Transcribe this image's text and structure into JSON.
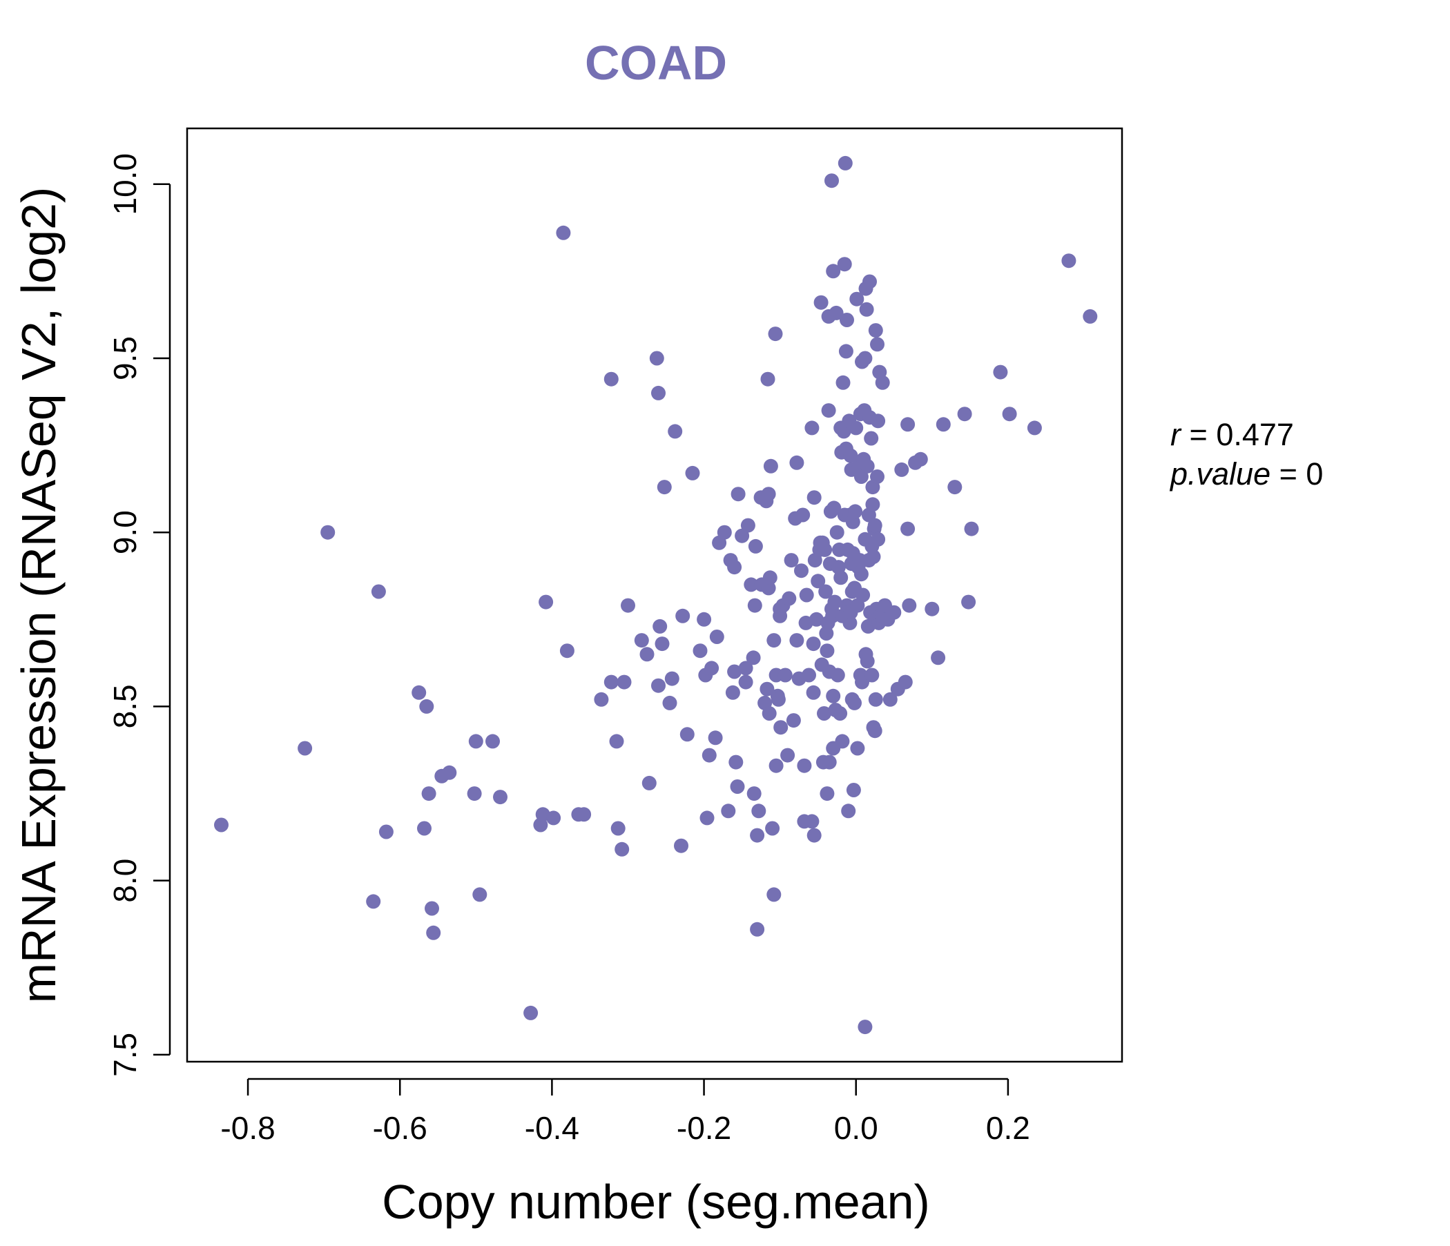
{
  "chart_data": {
    "type": "scatter",
    "title": "COAD",
    "xlabel": "Copy number (seg.mean)",
    "ylabel": "mRNA Expression (RNASeq V2, log2)",
    "xlim": [
      -0.88,
      0.35
    ],
    "ylim": [
      7.48,
      10.16
    ],
    "xticks": [
      -0.8,
      -0.6,
      -0.4,
      -0.2,
      0.0,
      0.2
    ],
    "xtick_labels": [
      "-0.8",
      "-0.6",
      "-0.4",
      "-0.2",
      "0.0",
      "0.2"
    ],
    "yticks": [
      7.5,
      8.0,
      8.5,
      9.0,
      9.5,
      10.0
    ],
    "ytick_labels": [
      "7.5",
      "8.0",
      "8.5",
      "9.0",
      "9.5",
      "10.0"
    ],
    "grid": false,
    "legend": "none",
    "annotations": [
      {
        "label": "r",
        "value": "0.477"
      },
      {
        "label": "p.value",
        "value": "0"
      }
    ],
    "series": [
      {
        "color": "#7570b3",
        "points": [
          [
            -0.835,
            8.16
          ],
          [
            -0.725,
            8.38
          ],
          [
            -0.695,
            9.0
          ],
          [
            -0.635,
            7.94
          ],
          [
            -0.628,
            8.83
          ],
          [
            -0.618,
            8.14
          ],
          [
            -0.575,
            8.54
          ],
          [
            -0.568,
            8.15
          ],
          [
            -0.565,
            8.5
          ],
          [
            -0.562,
            8.25
          ],
          [
            -0.558,
            7.92
          ],
          [
            -0.556,
            7.85
          ],
          [
            -0.545,
            8.3
          ],
          [
            -0.535,
            8.31
          ],
          [
            -0.502,
            8.25
          ],
          [
            -0.5,
            8.4
          ],
          [
            -0.495,
            7.96
          ],
          [
            -0.478,
            8.4
          ],
          [
            -0.468,
            8.24
          ],
          [
            -0.428,
            7.62
          ],
          [
            -0.415,
            8.16
          ],
          [
            -0.412,
            8.19
          ],
          [
            -0.408,
            8.8
          ],
          [
            -0.398,
            8.18
          ],
          [
            -0.385,
            9.86
          ],
          [
            -0.38,
            8.66
          ],
          [
            -0.365,
            8.19
          ],
          [
            -0.358,
            8.19
          ],
          [
            -0.335,
            8.52
          ],
          [
            -0.322,
            8.57
          ],
          [
            -0.322,
            9.44
          ],
          [
            -0.315,
            8.4
          ],
          [
            -0.313,
            8.15
          ],
          [
            -0.308,
            8.09
          ],
          [
            -0.305,
            8.57
          ],
          [
            -0.3,
            8.79
          ],
          [
            -0.282,
            8.69
          ],
          [
            -0.275,
            8.65
          ],
          [
            -0.272,
            8.28
          ],
          [
            -0.262,
            9.5
          ],
          [
            -0.26,
            9.4
          ],
          [
            -0.26,
            8.56
          ],
          [
            -0.258,
            8.73
          ],
          [
            -0.255,
            8.68
          ],
          [
            -0.252,
            9.13
          ],
          [
            -0.245,
            8.51
          ],
          [
            -0.242,
            8.58
          ],
          [
            -0.238,
            9.29
          ],
          [
            -0.23,
            8.1
          ],
          [
            -0.228,
            8.76
          ],
          [
            -0.222,
            8.42
          ],
          [
            -0.215,
            9.17
          ],
          [
            -0.205,
            8.66
          ],
          [
            -0.2,
            8.75
          ],
          [
            -0.198,
            8.59
          ],
          [
            -0.196,
            8.18
          ],
          [
            -0.193,
            8.36
          ],
          [
            -0.19,
            8.61
          ],
          [
            -0.185,
            8.41
          ],
          [
            -0.183,
            8.7
          ],
          [
            -0.18,
            8.97
          ],
          [
            -0.173,
            9.0
          ],
          [
            -0.168,
            8.2
          ],
          [
            -0.165,
            8.92
          ],
          [
            -0.162,
            8.54
          ],
          [
            -0.16,
            8.6
          ],
          [
            -0.16,
            8.9
          ],
          [
            -0.158,
            8.34
          ],
          [
            -0.156,
            8.27
          ],
          [
            -0.155,
            9.11
          ],
          [
            -0.15,
            8.99
          ],
          [
            -0.145,
            8.57
          ],
          [
            -0.145,
            8.61
          ],
          [
            -0.142,
            9.02
          ],
          [
            -0.138,
            8.85
          ],
          [
            -0.135,
            8.64
          ],
          [
            -0.134,
            8.25
          ],
          [
            -0.133,
            8.79
          ],
          [
            -0.132,
            8.96
          ],
          [
            -0.13,
            8.13
          ],
          [
            -0.13,
            7.86
          ],
          [
            -0.128,
            8.2
          ],
          [
            -0.125,
            9.1
          ],
          [
            -0.124,
            8.85
          ],
          [
            -0.12,
            8.51
          ],
          [
            -0.118,
            9.09
          ],
          [
            -0.117,
            8.55
          ],
          [
            -0.116,
            9.44
          ],
          [
            -0.115,
            8.84
          ],
          [
            -0.115,
            9.11
          ],
          [
            -0.114,
            8.48
          ],
          [
            -0.113,
            8.87
          ],
          [
            -0.112,
            9.19
          ],
          [
            -0.11,
            8.15
          ],
          [
            -0.108,
            8.69
          ],
          [
            -0.108,
            7.96
          ],
          [
            -0.106,
            9.57
          ],
          [
            -0.105,
            8.33
          ],
          [
            -0.105,
            8.59
          ],
          [
            -0.103,
            8.53
          ],
          [
            -0.102,
            8.52
          ],
          [
            -0.1,
            8.76
          ],
          [
            -0.1,
            8.78
          ],
          [
            -0.099,
            8.44
          ],
          [
            -0.096,
            8.79
          ],
          [
            -0.093,
            8.59
          ],
          [
            -0.09,
            8.36
          ],
          [
            -0.088,
            8.81
          ],
          [
            -0.085,
            8.92
          ],
          [
            -0.082,
            8.46
          ],
          [
            -0.08,
            9.04
          ],
          [
            -0.078,
            9.2
          ],
          [
            -0.078,
            8.69
          ],
          [
            -0.075,
            8.58
          ],
          [
            -0.072,
            8.89
          ],
          [
            -0.07,
            9.05
          ],
          [
            -0.068,
            8.33
          ],
          [
            -0.068,
            8.17
          ],
          [
            -0.066,
            8.74
          ],
          [
            -0.065,
            8.82
          ],
          [
            -0.062,
            8.59
          ],
          [
            -0.058,
            9.3
          ],
          [
            -0.058,
            8.17
          ],
          [
            -0.056,
            8.54
          ],
          [
            -0.056,
            8.68
          ],
          [
            -0.055,
            9.1
          ],
          [
            -0.055,
            8.13
          ],
          [
            -0.054,
            8.92
          ],
          [
            -0.052,
            8.75
          ],
          [
            -0.05,
            8.86
          ],
          [
            -0.048,
            8.95
          ],
          [
            -0.047,
            8.97
          ],
          [
            -0.046,
            9.66
          ],
          [
            -0.045,
            8.62
          ],
          [
            -0.044,
            8.97
          ],
          [
            -0.043,
            8.34
          ],
          [
            -0.042,
            8.48
          ],
          [
            -0.041,
            8.95
          ],
          [
            -0.04,
            8.83
          ],
          [
            -0.039,
            8.71
          ],
          [
            -0.038,
            8.66
          ],
          [
            -0.038,
            8.25
          ],
          [
            -0.037,
            8.74
          ],
          [
            -0.036,
            9.62
          ],
          [
            -0.036,
            9.35
          ],
          [
            -0.035,
            8.34
          ],
          [
            -0.035,
            8.6
          ],
          [
            -0.034,
            8.91
          ],
          [
            -0.033,
            9.06
          ],
          [
            -0.032,
            10.01
          ],
          [
            -0.032,
            8.78
          ],
          [
            -0.031,
            8.76
          ],
          [
            -0.03,
            9.75
          ],
          [
            -0.03,
            8.38
          ],
          [
            -0.03,
            8.53
          ],
          [
            -0.029,
            9.07
          ],
          [
            -0.028,
            8.8
          ],
          [
            -0.027,
            8.49
          ],
          [
            -0.026,
            9.63
          ],
          [
            -0.025,
            9.0
          ],
          [
            -0.024,
            8.59
          ],
          [
            -0.023,
            8.9
          ],
          [
            -0.022,
            8.95
          ],
          [
            -0.021,
            8.48
          ],
          [
            -0.02,
            9.3
          ],
          [
            -0.02,
            8.87
          ],
          [
            -0.019,
            9.23
          ],
          [
            -0.018,
            8.4
          ],
          [
            -0.018,
            8.76
          ],
          [
            -0.017,
            9.43
          ],
          [
            -0.016,
            9.29
          ],
          [
            -0.015,
            9.05
          ],
          [
            -0.015,
            9.77
          ],
          [
            -0.014,
            10.06
          ],
          [
            -0.013,
            9.24
          ],
          [
            -0.013,
            9.52
          ],
          [
            -0.012,
            9.61
          ],
          [
            -0.012,
            8.79
          ],
          [
            -0.011,
            8.95
          ],
          [
            -0.01,
            8.77
          ],
          [
            -0.01,
            8.2
          ],
          [
            -0.009,
            9.32
          ],
          [
            -0.008,
            8.74
          ],
          [
            -0.008,
            9.05
          ],
          [
            -0.007,
            9.22
          ],
          [
            -0.007,
            8.77
          ],
          [
            -0.006,
            9.18
          ],
          [
            -0.006,
            8.91
          ],
          [
            -0.005,
            8.83
          ],
          [
            -0.005,
            8.52
          ],
          [
            -0.004,
            9.03
          ],
          [
            -0.004,
            8.94
          ],
          [
            -0.003,
            8.26
          ],
          [
            -0.002,
            8.84
          ],
          [
            -0.002,
            8.51
          ],
          [
            -0.001,
            9.06
          ],
          [
            0.0,
            9.3
          ],
          [
            0.001,
            9.67
          ],
          [
            0.002,
            8.38
          ],
          [
            0.002,
            8.79
          ],
          [
            0.003,
            8.9
          ],
          [
            0.004,
            9.19
          ],
          [
            0.005,
            8.92
          ],
          [
            0.006,
            8.59
          ],
          [
            0.006,
            9.34
          ],
          [
            0.007,
            8.88
          ],
          [
            0.007,
            9.16
          ],
          [
            0.008,
            9.49
          ],
          [
            0.008,
            8.57
          ],
          [
            0.009,
            8.82
          ],
          [
            0.01,
            9.21
          ],
          [
            0.011,
            9.35
          ],
          [
            0.012,
            8.98
          ],
          [
            0.012,
            9.5
          ],
          [
            0.012,
            7.58
          ],
          [
            0.013,
            8.65
          ],
          [
            0.013,
            9.7
          ],
          [
            0.014,
            9.64
          ],
          [
            0.015,
            8.63
          ],
          [
            0.015,
            9.19
          ],
          [
            0.016,
            8.73
          ],
          [
            0.017,
            9.05
          ],
          [
            0.017,
            8.92
          ],
          [
            0.018,
            9.72
          ],
          [
            0.018,
            9.33
          ],
          [
            0.019,
            8.77
          ],
          [
            0.02,
            9.27
          ],
          [
            0.021,
            8.96
          ],
          [
            0.021,
            8.59
          ],
          [
            0.022,
            9.08
          ],
          [
            0.022,
            9.13
          ],
          [
            0.023,
            8.44
          ],
          [
            0.023,
            8.93
          ],
          [
            0.024,
            9.01
          ],
          [
            0.024,
            8.76
          ],
          [
            0.025,
            8.43
          ],
          [
            0.025,
            9.02
          ],
          [
            0.026,
            8.52
          ],
          [
            0.026,
            9.58
          ],
          [
            0.027,
            8.78
          ],
          [
            0.028,
            9.16
          ],
          [
            0.028,
            9.54
          ],
          [
            0.029,
            8.98
          ],
          [
            0.029,
            9.32
          ],
          [
            0.03,
            8.74
          ],
          [
            0.031,
            9.46
          ],
          [
            0.032,
            8.76
          ],
          [
            0.035,
            9.43
          ],
          [
            0.035,
            8.76
          ],
          [
            0.038,
            8.79
          ],
          [
            0.042,
            8.75
          ],
          [
            0.045,
            8.52
          ],
          [
            0.05,
            8.77
          ],
          [
            0.055,
            8.55
          ],
          [
            0.06,
            9.18
          ],
          [
            0.065,
            8.57
          ],
          [
            0.068,
            9.31
          ],
          [
            0.068,
            9.01
          ],
          [
            0.07,
            8.79
          ],
          [
            0.078,
            9.2
          ],
          [
            0.085,
            9.21
          ],
          [
            0.1,
            8.78
          ],
          [
            0.108,
            8.64
          ],
          [
            0.115,
            9.31
          ],
          [
            0.13,
            9.13
          ],
          [
            0.143,
            9.34
          ],
          [
            0.148,
            8.8
          ],
          [
            0.152,
            9.01
          ],
          [
            0.19,
            9.46
          ],
          [
            0.202,
            9.34
          ],
          [
            0.235,
            9.3
          ],
          [
            0.28,
            9.78
          ],
          [
            0.308,
            9.62
          ]
        ]
      }
    ]
  }
}
